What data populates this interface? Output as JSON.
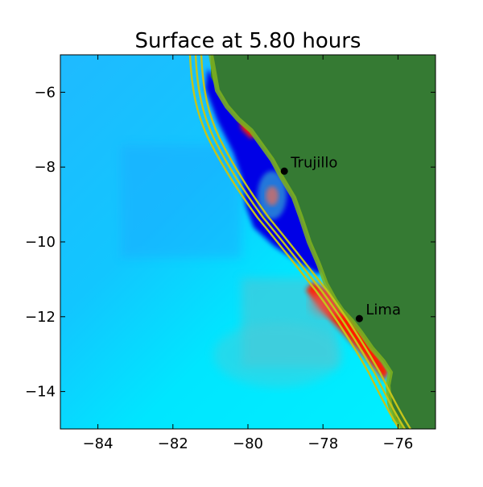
{
  "title": "Surface at 5.80 hours",
  "map": {
    "xlim": [
      -85,
      -75
    ],
    "ylim": [
      -15,
      -5
    ],
    "xticks": [
      -84,
      -82,
      -80,
      -78,
      -76
    ],
    "yticks": [
      -14,
      -12,
      -10,
      -8,
      -6
    ],
    "xtick_labels": [
      "−84",
      "−82",
      "−80",
      "−78",
      "−76"
    ],
    "ytick_labels": [
      "−14",
      "−12",
      "−10",
      "−8",
      "−6"
    ],
    "colors": {
      "land": "#357a33",
      "deep_ocean": "#00dfff",
      "mid_ocean": "#22b4ff",
      "trough": "#0000e6",
      "crest": "#ff1e00",
      "contour": "#c4c41a",
      "coast_fringe": "#7fb21e"
    }
  },
  "cities": [
    {
      "name": "Trujillo",
      "lon": -79.03,
      "lat": -8.11
    },
    {
      "name": "Lima",
      "lon": -77.03,
      "lat": -12.05
    }
  ]
}
